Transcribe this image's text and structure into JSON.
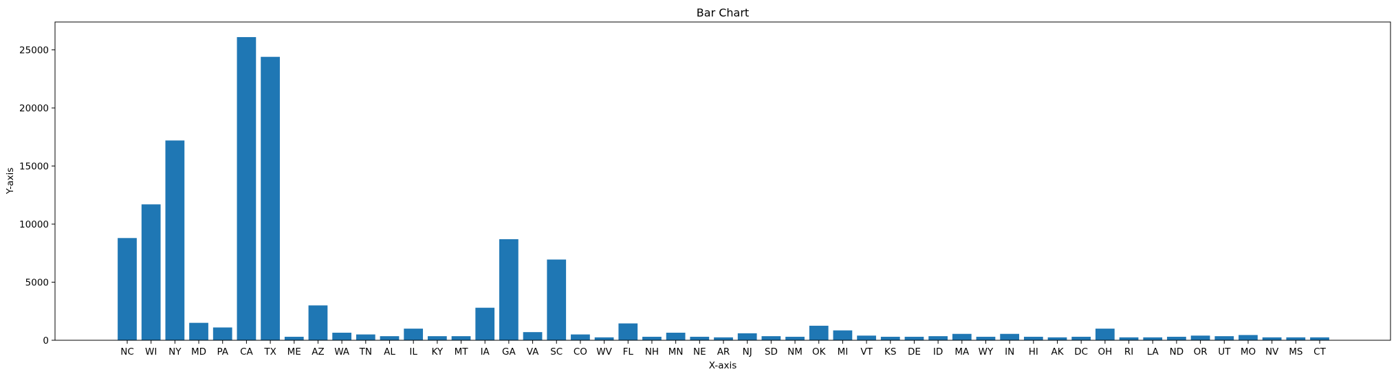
{
  "chart_data": {
    "type": "bar",
    "title": "Bar Chart",
    "xlabel": "X-axis",
    "ylabel": "Y-axis",
    "ylim": [
      0,
      27400
    ],
    "yticks": [
      0,
      5000,
      10000,
      15000,
      20000,
      25000
    ],
    "grid": false,
    "bar_color": "#1f77b4",
    "categories": [
      "NC",
      "WI",
      "NY",
      "MD",
      "PA",
      "CA",
      "TX",
      "ME",
      "AZ",
      "WA",
      "TN",
      "AL",
      "IL",
      "KY",
      "MT",
      "IA",
      "GA",
      "VA",
      "SC",
      "CO",
      "WV",
      "FL",
      "NH",
      "MN",
      "NE",
      "AR",
      "NJ",
      "SD",
      "NM",
      "OK",
      "MI",
      "VT",
      "KS",
      "DE",
      "ID",
      "MA",
      "WY",
      "IN",
      "HI",
      "AK",
      "DC",
      "OH",
      "RI",
      "LA",
      "ND",
      "OR",
      "UT",
      "MO",
      "NV",
      "MS",
      "CT"
    ],
    "values": [
      8800,
      11700,
      17200,
      1500,
      1100,
      26100,
      24400,
      300,
      3000,
      650,
      500,
      350,
      1000,
      350,
      350,
      2800,
      8700,
      700,
      6950,
      500,
      250,
      1450,
      300,
      650,
      300,
      250,
      600,
      350,
      300,
      1250,
      850,
      400,
      300,
      300,
      350,
      550,
      300,
      550,
      300,
      250,
      300,
      1000,
      250,
      250,
      300,
      400,
      350,
      450,
      250,
      250,
      250
    ]
  }
}
